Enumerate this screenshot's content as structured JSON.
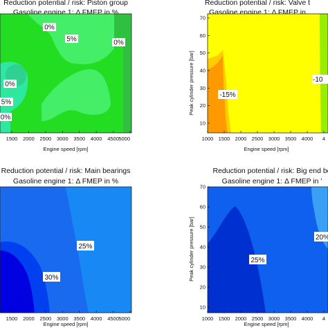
{
  "chart_data": [
    {
      "type": "contour",
      "title": "Reduction potential / risk: Piston group",
      "subtitle": "Gasoline engine 1: Δ FMEP in %",
      "xlabel": "Engine speed [rpm]",
      "ylabel": "",
      "xlim": [
        1000,
        5000
      ],
      "ylim": [
        10,
        70
      ],
      "x_ticks": [
        "1500",
        "2000",
        "2500",
        "3000",
        "3500",
        "4000",
        "4500",
        "5000"
      ],
      "y_ticks": [],
      "contour_labels": [
        "0%",
        "5%",
        "0%",
        "0%",
        "5%",
        "0%"
      ],
      "colors": [
        "#22dd22",
        "#44ee66",
        "#2ee8a0",
        "#30d090",
        "#30c040"
      ]
    },
    {
      "type": "contour",
      "title": "Reduction potential / risk: Valve t",
      "subtitle": "Gasoline engine 1: Δ FMEP in",
      "xlabel": "Engine speed [rpm]",
      "ylabel": "Peak cylinder pressure [bar]",
      "xlim": [
        1000,
        4500
      ],
      "ylim": [
        10,
        70
      ],
      "x_ticks": [
        "1000",
        "1500",
        "2000",
        "2500",
        "3000",
        "3500",
        "4000",
        "4"
      ],
      "y_ticks": [
        "10",
        "20",
        "30",
        "40",
        "50",
        "60",
        "70"
      ],
      "contour_labels": [
        "-15%",
        "-10"
      ],
      "colors": [
        "#ffff00",
        "#ff9900",
        "#ffcc00",
        "#99ee00"
      ]
    },
    {
      "type": "contour",
      "title": "Reduction potential / risk: Main bearings",
      "subtitle": "Gasoline engine 1: Δ FMEP in %",
      "xlabel": "Engine speed [rpm]",
      "ylabel": "",
      "xlim": [
        1000,
        5000
      ],
      "ylim": [
        10,
        70
      ],
      "x_ticks": [
        "1500",
        "2000",
        "2500",
        "3000",
        "3500",
        "4000",
        "4500",
        "5000"
      ],
      "y_ticks": [],
      "contour_labels": [
        "25%",
        "30%"
      ],
      "colors": [
        "#1a6af0",
        "#1888f5",
        "#0000e0",
        "#0040f0"
      ]
    },
    {
      "type": "contour",
      "title": "Reduction potential / risk: Big end be",
      "subtitle": "Gasoline engine 1: Δ FMEP in '",
      "xlabel": "Engine speed [rpm]",
      "ylabel": "Peak cylinder pressure [bar]",
      "xlim": [
        1000,
        4500
      ],
      "ylim": [
        10,
        70
      ],
      "x_ticks": [
        "1000",
        "1500",
        "2000",
        "2500",
        "3000",
        "3500",
        "4000",
        "4"
      ],
      "y_ticks": [
        "10",
        "20",
        "30",
        "40",
        "50",
        "60",
        "70"
      ],
      "contour_labels": [
        "25%",
        "20%"
      ],
      "colors": [
        "#1060f0",
        "#0030d0",
        "#3aa0f5"
      ]
    }
  ]
}
